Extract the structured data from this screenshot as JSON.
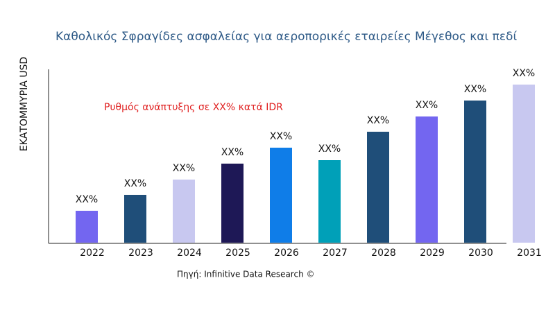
{
  "chart_data": {
    "type": "bar",
    "title": "Καθολικός Σφραγίδες ασφαλείας για αεροπορικές εταιρείες Μέγεθος και πεδί",
    "y_label": "ΕΚΑΤΟΜΜΥΡΙΑ USD",
    "annotation": "Ρυθμός ανάπτυξης σε XX% κατά IDR",
    "source": "Πηγή: Infinitive Data Research ©",
    "categories": [
      "2022",
      "2023",
      "2024",
      "2025",
      "2026",
      "2027",
      "2028",
      "2029",
      "2030",
      "2031"
    ],
    "values": [
      46,
      69,
      91,
      114,
      137,
      119,
      160,
      182,
      205,
      228
    ],
    "value_labels": [
      "XX%",
      "XX%",
      "XX%",
      "XX%",
      "XX%",
      "XX%",
      "XX%",
      "XX%",
      "XX%",
      "XX%"
    ],
    "colors": [
      "#7366f0",
      "#1f4e79",
      "#c8c8f0",
      "#1e1856",
      "#0f7de8",
      "#00a0b8",
      "#1f4e79",
      "#7366f0",
      "#1f4e79",
      "#c8c8f0"
    ],
    "ylim": [
      0,
      250
    ]
  }
}
